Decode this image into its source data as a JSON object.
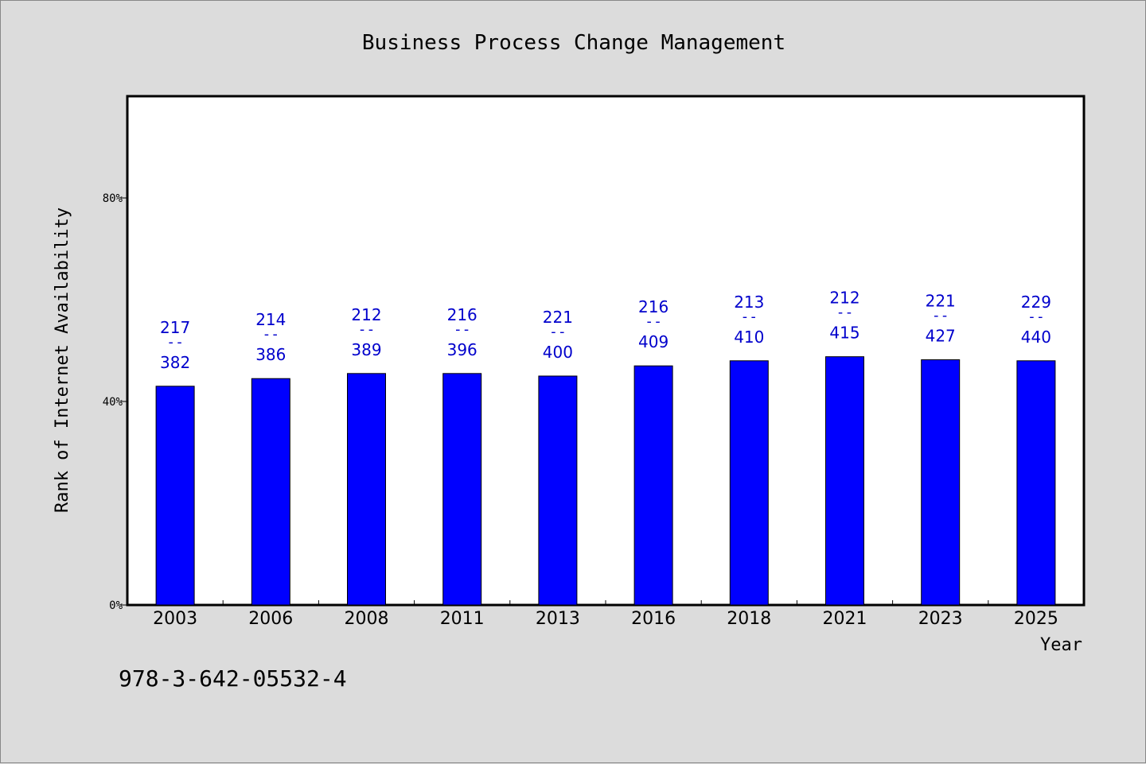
{
  "chart_data": {
    "type": "bar",
    "title": "Business Process Change Management",
    "xlabel": "Year",
    "ylabel": "Rank of Internet Availability",
    "y_ticks": [
      "0%",
      "40%",
      "80%"
    ],
    "y_tick_values": [
      0,
      40,
      80
    ],
    "ylim": [
      0,
      100
    ],
    "categories": [
      "2003",
      "2006",
      "2008",
      "2011",
      "2013",
      "2016",
      "2018",
      "2021",
      "2023",
      "2025"
    ],
    "values": [
      43,
      44.5,
      45.5,
      45.5,
      45,
      47,
      48,
      48.8,
      48.2,
      48
    ],
    "label_top": [
      "217",
      "214",
      "212",
      "216",
      "221",
      "216",
      "213",
      "212",
      "221",
      "229"
    ],
    "label_sep": "--",
    "label_bottom": [
      "382",
      "386",
      "389",
      "396",
      "400",
      "409",
      "410",
      "415",
      "427",
      "440"
    ],
    "bar_color": "#0000ff",
    "label_color": "#0000cc",
    "grid": false
  },
  "footer": {
    "isbn": "978-3-642-05532-4"
  }
}
